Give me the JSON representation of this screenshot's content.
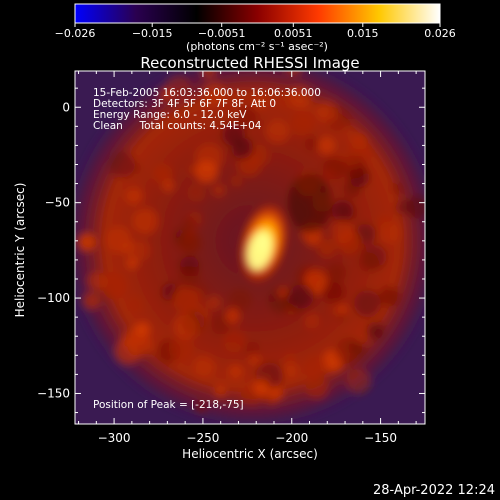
{
  "chart_data": {
    "type": "heatmap",
    "title": "Reconstructed RHESSI Image",
    "xlabel": "Heliocentric X (arcsec)",
    "ylabel": "Heliocentric Y (arcsec)",
    "xlim": [
      -322,
      -125
    ],
    "ylim": [
      -166,
      19
    ],
    "xticks": [
      -300,
      -250,
      -200,
      -150
    ],
    "yticks": [
      0,
      -50,
      -100,
      -150
    ],
    "colorbar": {
      "range": [
        -0.026,
        0.026
      ],
      "ticks": [
        -0.026,
        -0.015,
        -0.0051,
        0.0051,
        0.015,
        0.026
      ],
      "tick_labels": [
        "−0.026",
        "−0.015",
        "−0.0051",
        "0.0051",
        "0.015",
        "0.026"
      ],
      "unit_label": "(photons cm⁻² s⁻¹ asec⁻²)",
      "colors": [
        "#0000ff",
        "#2a0050",
        "#000000",
        "#8a0000",
        "#ff3a00",
        "#ffc800",
        "#ffffff"
      ]
    },
    "info_lines": [
      "15-Feb-2005 16:03:36.000 to 16:06:36.000",
      "Detectors: 3F 4F 5F 6F 7F 8F, Att 0",
      "Energy Range: 6.0 - 12.0 keV",
      "Clean     Total counts: 4.54E+04"
    ],
    "peak_label": "Position of Peak = [-218,-75]",
    "peak": [
      -218,
      -75
    ],
    "ring_center": [
      -222,
      -70
    ],
    "ring_radius": 95,
    "background_color": "#3a1a52"
  },
  "footer": {
    "timestamp": "28-Apr-2022 12:24"
  }
}
